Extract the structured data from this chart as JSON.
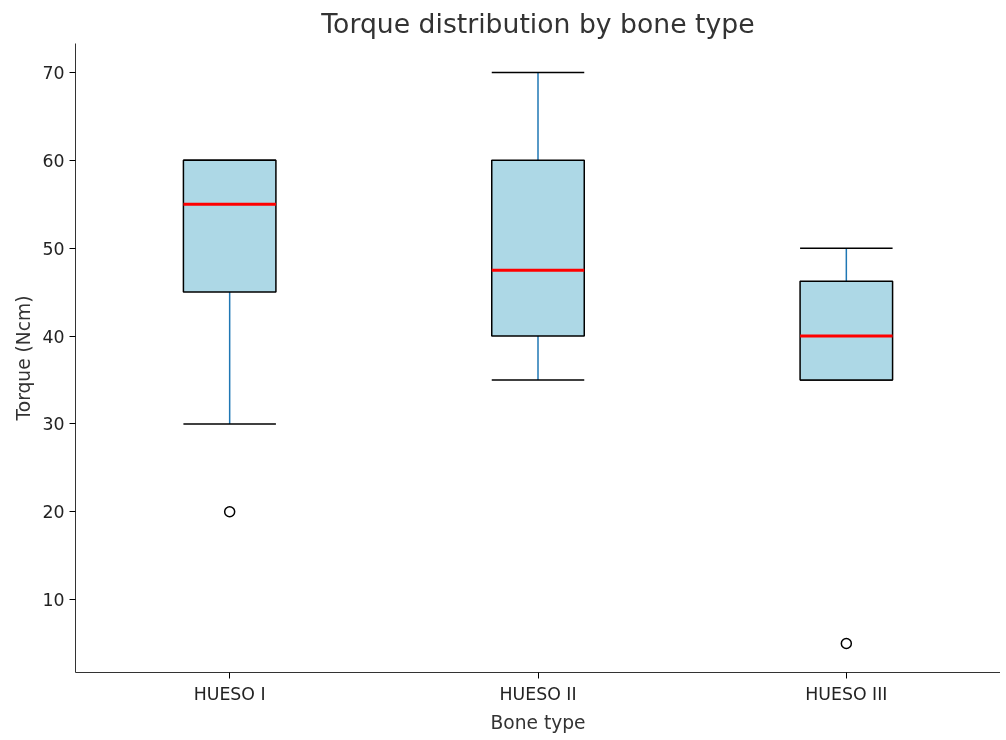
{
  "chart_data": {
    "type": "box",
    "title": "Torque distribution by bone type",
    "xlabel": "Bone type",
    "ylabel": "Torque (Ncm)",
    "categories": [
      "HUESO I",
      "HUESO II",
      "HUESO III"
    ],
    "series": [
      {
        "color": "#add8e6",
        "boxes": [
          {
            "low": 30,
            "q1": 45,
            "median": 55,
            "q3": 60,
            "high": 60,
            "outliers": [
              20
            ]
          },
          {
            "low": 35,
            "q1": 40,
            "median": 47.5,
            "q3": 60,
            "high": 70
          },
          {
            "low": 35,
            "q1": 35,
            "median": 40,
            "q3": 46.25,
            "high": 50,
            "outliers": [
              5
            ]
          }
        ]
      }
    ],
    "ylim": [
      1.7,
      73.3
    ],
    "yticks": [
      10,
      20,
      30,
      40,
      50,
      60,
      70
    ],
    "grid": false
  }
}
